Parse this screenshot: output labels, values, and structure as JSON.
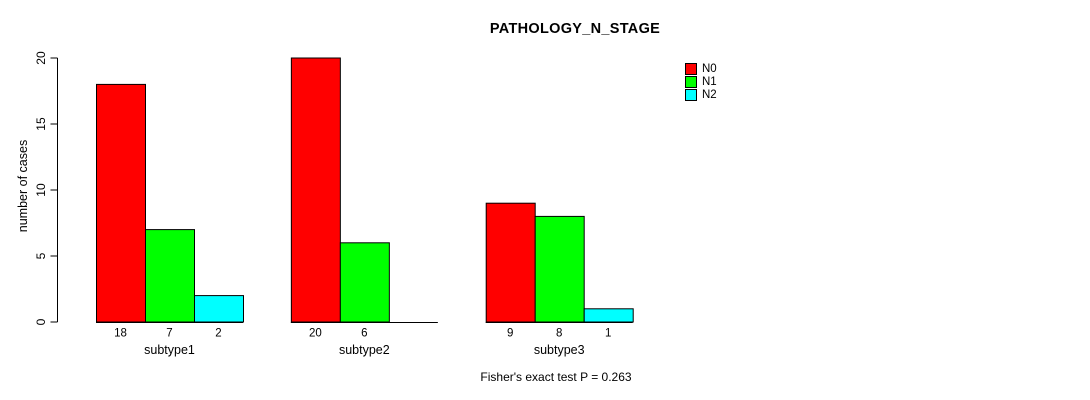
{
  "chart_data": {
    "type": "bar",
    "title": "PATHOLOGY_N_STAGE",
    "ylabel": "number of cases",
    "xlabel": "",
    "categories": [
      "subtype1",
      "subtype2",
      "subtype3"
    ],
    "series": [
      {
        "name": "N0",
        "color": "#ff0000",
        "values": [
          18,
          20,
          9
        ]
      },
      {
        "name": "N1",
        "color": "#00ff00",
        "values": [
          7,
          6,
          8
        ]
      },
      {
        "name": "N2",
        "color": "#00ffff",
        "values": [
          2,
          0,
          1
        ]
      }
    ],
    "bar_value_labels": [
      [
        "18",
        "7",
        "2"
      ],
      [
        "20",
        "6",
        ""
      ],
      [
        "9",
        "8",
        "1"
      ]
    ],
    "ylim": [
      0,
      20
    ],
    "yticks": [
      0,
      5,
      10,
      15,
      20
    ],
    "grid": false,
    "legend_position": "top-right",
    "footnote": "Fisher's exact test P = 0.263"
  },
  "colors": {
    "background": "#ffffff",
    "axis": "#000000",
    "text": "#000000",
    "bar_border": "#000000"
  }
}
